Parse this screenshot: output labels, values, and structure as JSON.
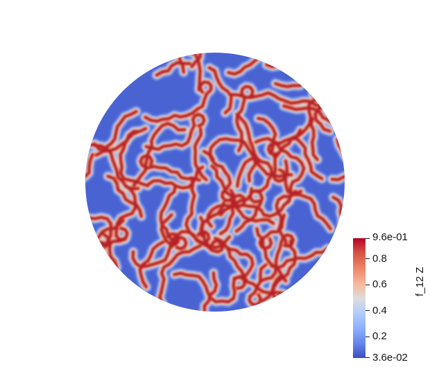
{
  "colorbar": {
    "title": "f_12 Z",
    "max_label": "9.6e-01",
    "min_label": "3.6e-02",
    "ticks": [
      {
        "value": 0.8,
        "label": "0.8"
      },
      {
        "value": 0.6,
        "label": "0.6"
      },
      {
        "value": 0.4,
        "label": "0.4"
      },
      {
        "value": 0.2,
        "label": "0.2"
      }
    ],
    "range": [
      0.036,
      0.96
    ],
    "colormap": "coolwarm",
    "colors": {
      "low": "#3b4cc0",
      "mid": "#dddcdc",
      "high": "#b40426"
    }
  },
  "field": {
    "shape": "circle",
    "pattern": "labyrinthine stripes",
    "background_color": "#3b4cc0"
  }
}
